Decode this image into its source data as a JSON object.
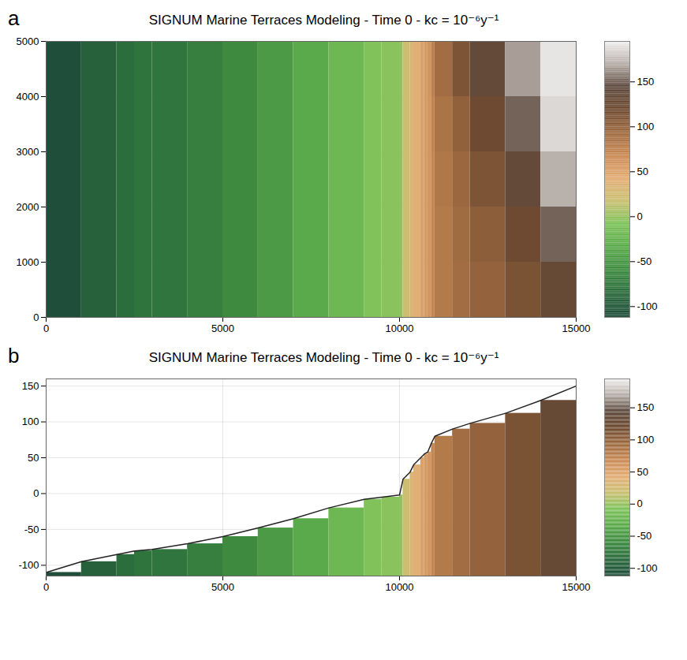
{
  "chart_data": [
    {
      "type": "heatmap",
      "panel": "a",
      "title": "SIGNUM Marine Terraces Modeling - Time 0 - kc = 10⁻⁶y⁻¹",
      "x_edges": [
        0,
        1000,
        2000,
        2500,
        3000,
        4000,
        5000,
        6000,
        7000,
        8000,
        9000,
        9500,
        10000,
        10100,
        10300,
        10400,
        10600,
        10700,
        10800,
        10900,
        11000,
        11500,
        12000,
        13000,
        14000,
        15000
      ],
      "y_edges": [
        0,
        1000,
        2000,
        3000,
        4000,
        5000
      ],
      "values": [
        [
          -110,
          -95,
          -85,
          -80,
          -78,
          -70,
          -60,
          -48,
          -35,
          -20,
          -8,
          -5,
          -2,
          20,
          30,
          40,
          50,
          55,
          58,
          70,
          80,
          90,
          98,
          112,
          130
        ],
        [
          -110,
          -95,
          -85,
          -80,
          -78,
          -70,
          -60,
          -48,
          -35,
          -20,
          -8,
          -5,
          -2,
          20,
          30,
          40,
          50,
          55,
          58,
          70,
          80,
          92,
          102,
          120,
          150
        ],
        [
          -110,
          -95,
          -85,
          -80,
          -78,
          -70,
          -60,
          -48,
          -35,
          -20,
          -8,
          -5,
          -2,
          20,
          30,
          40,
          50,
          55,
          58,
          70,
          82,
          95,
          110,
          135,
          170
        ],
        [
          -110,
          -95,
          -85,
          -80,
          -78,
          -70,
          -60,
          -48,
          -35,
          -20,
          -8,
          -5,
          -2,
          20,
          30,
          40,
          50,
          55,
          58,
          72,
          85,
          100,
          120,
          150,
          185
        ],
        [
          -110,
          -95,
          -85,
          -80,
          -78,
          -70,
          -60,
          -48,
          -35,
          -20,
          -8,
          -5,
          -2,
          20,
          30,
          40,
          50,
          55,
          60,
          75,
          90,
          110,
          135,
          165,
          190
        ]
      ],
      "xlim": [
        0,
        15000
      ],
      "xticks": [
        0,
        5000,
        10000,
        15000
      ],
      "ylim": [
        0,
        5000
      ],
      "yticks": [
        0,
        1000,
        2000,
        3000,
        4000,
        5000
      ],
      "grid": true,
      "colorbar": {
        "lim": [
          -112,
          195
        ],
        "ticks": [
          -100,
          -50,
          0,
          50,
          100,
          150
        ]
      }
    },
    {
      "type": "area",
      "panel": "b",
      "title": "SIGNUM Marine Terraces Modeling - Time 0 - kc = 10⁻⁶y⁻¹",
      "x": [
        0,
        1000,
        2000,
        2500,
        3000,
        4000,
        5000,
        6000,
        7000,
        8000,
        9000,
        9500,
        10000,
        10100,
        10300,
        10400,
        10600,
        10700,
        10800,
        10900,
        11000,
        11500,
        12000,
        13000,
        14000,
        15000
      ],
      "values": [
        -110,
        -95,
        -85,
        -80,
        -78,
        -70,
        -60,
        -48,
        -35,
        -20,
        -8,
        -5,
        -2,
        20,
        30,
        40,
        50,
        55,
        58,
        70,
        80,
        90,
        98,
        112,
        130,
        150
      ],
      "xlim": [
        0,
        15000
      ],
      "xticks": [
        0,
        5000,
        10000,
        15000
      ],
      "ylim": [
        -115,
        160
      ],
      "yticks": [
        -100,
        -50,
        0,
        50,
        100,
        150
      ],
      "grid": true,
      "colorbar": {
        "lim": [
          -112,
          195
        ],
        "ticks": [
          -100,
          -50,
          0,
          50,
          100,
          150
        ]
      }
    }
  ]
}
